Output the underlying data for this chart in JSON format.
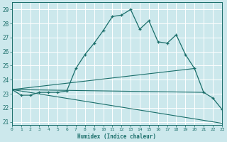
{
  "xlabel": "Humidex (Indice chaleur)",
  "background_color": "#cce8ec",
  "grid_color": "#b0d4d8",
  "line_color": "#1a6e6a",
  "xlim": [
    0,
    23
  ],
  "ylim": [
    20.8,
    29.5
  ],
  "yticks": [
    21,
    22,
    23,
    24,
    25,
    26,
    27,
    28,
    29
  ],
  "xticks": [
    0,
    1,
    2,
    3,
    4,
    5,
    6,
    7,
    8,
    9,
    10,
    11,
    12,
    13,
    14,
    15,
    16,
    17,
    18,
    19,
    20,
    21,
    22,
    23
  ],
  "line1_x": [
    0,
    1,
    2,
    3,
    4,
    5,
    6,
    7,
    8,
    9,
    10,
    11,
    12,
    13,
    14,
    15,
    16,
    17,
    18,
    19,
    20,
    21,
    22,
    23
  ],
  "line1_y": [
    23.3,
    22.9,
    22.9,
    23.1,
    23.1,
    23.1,
    23.2,
    24.8,
    25.8,
    26.6,
    27.5,
    28.5,
    28.6,
    29.0,
    27.6,
    28.2,
    26.7,
    26.6,
    27.2,
    25.8,
    24.8,
    23.1,
    22.7,
    21.9
  ],
  "line2_x": [
    0,
    20
  ],
  "line2_y": [
    23.3,
    24.8
  ],
  "line3_x": [
    0,
    21
  ],
  "line3_y": [
    23.3,
    23.1
  ],
  "line4_x": [
    0,
    23
  ],
  "line4_y": [
    23.3,
    20.9
  ]
}
